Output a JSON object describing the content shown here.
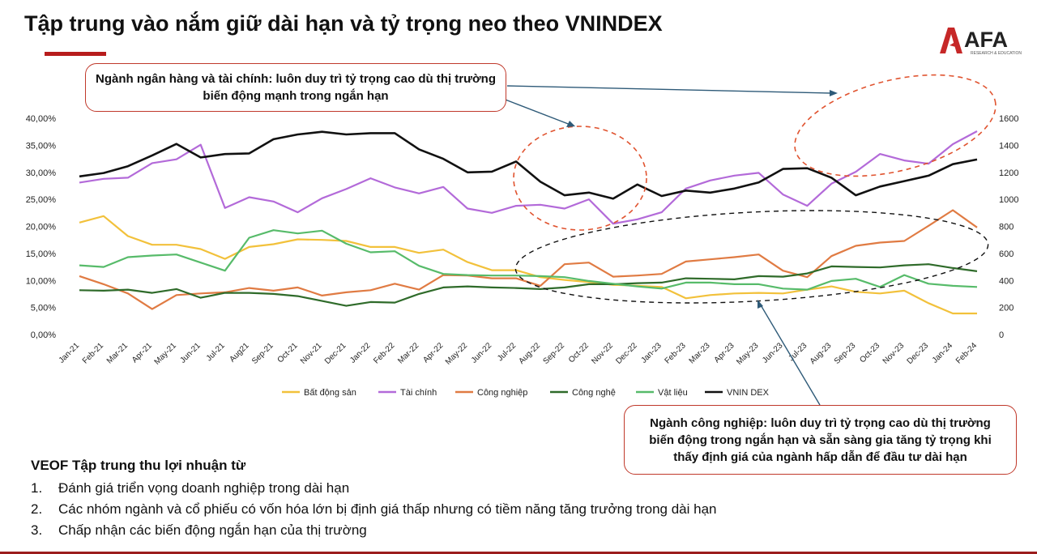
{
  "header": {
    "title": "Tập trung vào nắm giữ dài hạn và tỷ trọng neo theo VNINDEX",
    "logo_text": "AFA",
    "logo_subtext": "RESEARCH & EDUCATION",
    "accent_color": "#b71c1c"
  },
  "callouts": {
    "finance": "Ngành ngân hàng và tài chính: luôn duy trì tỷ trọng cao dù thị trường biến động mạnh trong ngắn hạn",
    "industry": "Ngành công nghiệp: luôn duy trì tỷ trọng cao dù thị trường biến động trong ngắn hạn và sẵn sàng gia tăng tỷ trọng khi thấy định giá của ngành hấp dẫn để đầu tư dài hạn"
  },
  "notes": {
    "heading": "VEOF Tập trung thu lợi nhuận từ",
    "items": [
      {
        "num": "1.",
        "text": "Đánh giá triển vọng doanh nghiệp trong dài hạn"
      },
      {
        "num": "2.",
        "text": "Các nhóm ngành và cổ phiếu có vốn hóa lớn bị định giá thấp nhưng có tiềm năng tăng trưởng trong dài hạn"
      },
      {
        "num": "3.",
        "text": "Chấp nhận các biến động ngắn hạn của thị trường"
      }
    ]
  },
  "chart_data": {
    "type": "line",
    "categories": [
      "Jan-21",
      "Feb-21",
      "Mar-21",
      "Apr-21",
      "May-21",
      "Jun-21",
      "Jul-21",
      "Aug-21",
      "Sep-21",
      "Oct-21",
      "Nov-21",
      "Dec-21",
      "Jan-22",
      "Feb-22",
      "Mar-22",
      "Apr-22",
      "May-22",
      "Jun-22",
      "Jul-22",
      "Aug-22",
      "Sep-22",
      "Oct-22",
      "Nov-22",
      "Dec-22",
      "Jan-23",
      "Feb-23",
      "Mar-23",
      "Apr-23",
      "May-23",
      "Jun-23",
      "Jul-23",
      "Aug-23",
      "Sep-23",
      "Oct-23",
      "Nov-23",
      "Dec-23",
      "Jan-24",
      "Feb-24"
    ],
    "tick_labels": [
      "Jan-21",
      "Feb-21",
      "Mar-21",
      "Apr-21",
      "May-21",
      "Jun-21",
      "Jul-21",
      "Aug21",
      "Sep-21",
      "Oct-21",
      "Nov-21",
      "Dec-21",
      "Jan-22",
      "Feb-22",
      "Mar-22",
      "Apr-22",
      "May-22",
      "Jun-22",
      "Jul-22",
      "Aug-22",
      "Sep-22",
      "Oct-22",
      "Nov-22",
      "Dec-22",
      "Jan-23",
      "Feb-23",
      "Mar-23",
      "Apr-23",
      "May-23",
      "Jun-23",
      "Jul-23",
      "Aug-23",
      "Sep-23",
      "Oct-23",
      "Nov-23",
      "Dec-23",
      "Jan-24",
      "Feb-24"
    ],
    "y_left": {
      "min": 0,
      "max": 0.4,
      "ticks": [
        "0,00%",
        "5,00%",
        "10,00%",
        "15,00%",
        "20,00%",
        "25,00%",
        "30,00%",
        "35,00%",
        "40,00%"
      ]
    },
    "y_right": {
      "min": 0,
      "max": 1600,
      "ticks": [
        "0",
        "200",
        "400",
        "600",
        "800",
        "1000",
        "1200",
        "1400",
        "1600"
      ]
    },
    "grid": false,
    "legend_position": "bottom",
    "series": [
      {
        "name": "Bất động sản",
        "color": "#f2c13b",
        "axis": "left",
        "values": [
          0.207,
          0.219,
          0.182,
          0.166,
          0.166,
          0.158,
          0.14,
          0.162,
          0.167,
          0.176,
          0.175,
          0.173,
          0.162,
          0.162,
          0.151,
          0.157,
          0.134,
          0.119,
          0.119,
          0.106,
          0.101,
          0.097,
          0.092,
          0.09,
          0.088,
          0.067,
          0.073,
          0.076,
          0.077,
          0.076,
          0.083,
          0.089,
          0.079,
          0.076,
          0.081,
          0.058,
          0.039,
          0.039
        ]
      },
      {
        "name": "Tài chính",
        "color": "#b36ad9",
        "axis": "left",
        "values": [
          0.281,
          0.288,
          0.29,
          0.317,
          0.324,
          0.351,
          0.234,
          0.254,
          0.246,
          0.226,
          0.252,
          0.269,
          0.289,
          0.272,
          0.261,
          0.273,
          0.233,
          0.225,
          0.238,
          0.24,
          0.233,
          0.25,
          0.205,
          0.213,
          0.226,
          0.27,
          0.285,
          0.294,
          0.299,
          0.259,
          0.238,
          0.279,
          0.301,
          0.334,
          0.322,
          0.316,
          0.352,
          0.376
        ]
      },
      {
        "name": "Công nghiệp",
        "color": "#e07b43",
        "axis": "left",
        "values": [
          0.108,
          0.093,
          0.076,
          0.047,
          0.073,
          0.076,
          0.078,
          0.086,
          0.081,
          0.087,
          0.072,
          0.078,
          0.082,
          0.094,
          0.083,
          0.11,
          0.109,
          0.104,
          0.104,
          0.09,
          0.13,
          0.133,
          0.107,
          0.109,
          0.112,
          0.135,
          0.139,
          0.143,
          0.148,
          0.118,
          0.106,
          0.145,
          0.164,
          0.17,
          0.173,
          0.201,
          0.23,
          0.198
        ]
      },
      {
        "name": "Công nghệ",
        "color": "#2f6b2a",
        "axis": "left",
        "values": [
          0.082,
          0.081,
          0.083,
          0.077,
          0.084,
          0.068,
          0.077,
          0.077,
          0.075,
          0.071,
          0.062,
          0.053,
          0.06,
          0.059,
          0.075,
          0.087,
          0.089,
          0.087,
          0.086,
          0.084,
          0.087,
          0.093,
          0.093,
          0.095,
          0.096,
          0.104,
          0.103,
          0.102,
          0.108,
          0.107,
          0.113,
          0.126,
          0.125,
          0.124,
          0.128,
          0.13,
          0.123,
          0.117
        ]
      },
      {
        "name": "Vật liệu",
        "color": "#57bb6a",
        "axis": "left",
        "values": [
          0.128,
          0.125,
          0.143,
          0.146,
          0.148,
          0.133,
          0.118,
          0.179,
          0.193,
          0.187,
          0.192,
          0.168,
          0.152,
          0.154,
          0.127,
          0.112,
          0.11,
          0.109,
          0.109,
          0.108,
          0.106,
          0.099,
          0.094,
          0.089,
          0.085,
          0.096,
          0.096,
          0.093,
          0.093,
          0.085,
          0.083,
          0.099,
          0.103,
          0.088,
          0.11,
          0.094,
          0.09,
          0.088
        ]
      },
      {
        "name": "VNIN DEX",
        "color": "#111111",
        "axis": "right",
        "values": [
          1170,
          1195,
          1245,
          1325,
          1410,
          1310,
          1335,
          1340,
          1445,
          1480,
          1500,
          1480,
          1490,
          1490,
          1370,
          1300,
          1200,
          1205,
          1280,
          1130,
          1030,
          1050,
          1005,
          1110,
          1025,
          1065,
          1050,
          1080,
          1125,
          1225,
          1230,
          1160,
          1030,
          1095,
          1135,
          1175,
          1260,
          1295
        ]
      }
    ]
  }
}
